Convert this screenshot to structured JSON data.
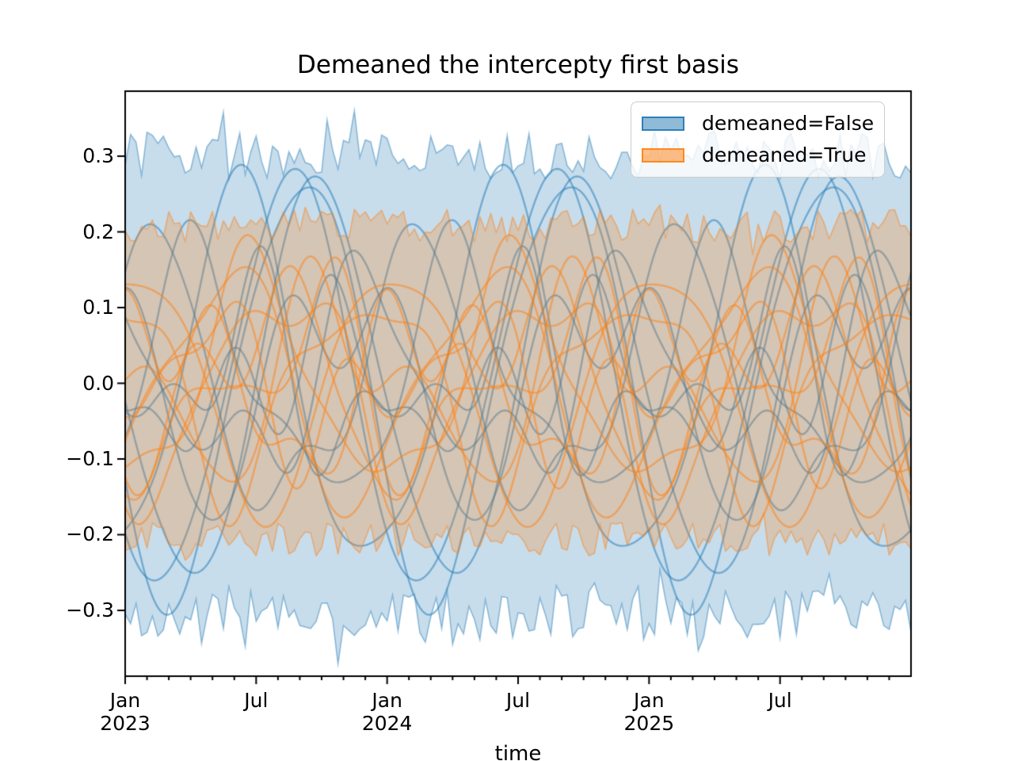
{
  "chart_data": {
    "type": "line",
    "title": "Demeaned the intercepty first basis",
    "xlabel": "time",
    "ylabel": "",
    "x_unit": "months since Jan 2023",
    "xlim": [
      0,
      36
    ],
    "ylim": [
      -0.387,
      0.386
    ],
    "grid": false,
    "yticks": [
      {
        "value": 0.3,
        "label": "0.3"
      },
      {
        "value": 0.2,
        "label": "0.2"
      },
      {
        "value": 0.1,
        "label": "0.1"
      },
      {
        "value": 0.0,
        "label": "0.0"
      },
      {
        "value": -0.1,
        "label": "−0.1"
      },
      {
        "value": -0.2,
        "label": "−0.2"
      },
      {
        "value": -0.3,
        "label": "−0.3"
      }
    ],
    "xticks_major": [
      {
        "month": 0,
        "lines": [
          "Jan",
          "2023"
        ]
      },
      {
        "month": 6,
        "lines": [
          "Jul"
        ]
      },
      {
        "month": 12,
        "lines": [
          "Jan",
          "2024"
        ]
      },
      {
        "month": 18,
        "lines": [
          "Jul"
        ]
      },
      {
        "month": 24,
        "lines": [
          "Jan",
          "2025"
        ]
      },
      {
        "month": 30,
        "lines": [
          "Jul"
        ]
      }
    ],
    "xticks_minor_interval_months": 1,
    "legend": {
      "position": "upper right",
      "entries": [
        {
          "label": "demeaned=False",
          "color": "#1f77b4"
        },
        {
          "label": "demeaned=True",
          "color": "#ff7f0e"
        }
      ]
    },
    "style": {
      "fill_alpha": 0.25,
      "band_edge_alpha": 0.45,
      "band_edge_width": 1.6,
      "line_alpha": 0.5,
      "line_width": 2.4,
      "spine_color": "#000000",
      "legend_swatch_fill_alpha": 0.5,
      "legend_swatch_edge_alpha": 0.85
    },
    "groups": [
      {
        "name": "demeaned=False",
        "color": "#1f77b4",
        "period_months": 12,
        "band": {
          "top_mean": 0.302,
          "bottom_mean": -0.305,
          "noise_amp": 0.032,
          "spike_prob": 0.1,
          "spike_amp": 0.05,
          "step_months": 0.25,
          "seed": 90210
        },
        "lines_harmonics_a1_s1_a2_s2_a3_s3": [
          [
            0.27,
            4.6,
            0.02,
            1.0,
            0.0,
            0.0
          ],
          [
            0.28,
            5.1,
            0.03,
            3.0,
            0.0,
            0.0
          ],
          [
            0.26,
            5.9,
            0.02,
            0.5,
            0.0,
            0.0
          ],
          [
            0.25,
            2.2,
            0.04,
            4.0,
            0.0,
            0.0
          ],
          [
            0.15,
            0.3,
            0.05,
            1.2,
            0.02,
            2.0
          ],
          [
            0.11,
            8.1,
            0.06,
            3.3,
            0.03,
            0.8
          ],
          [
            0.07,
            2.4,
            0.07,
            4.6,
            0.05,
            1.4
          ],
          [
            0.17,
            10.2,
            0.05,
            0.2,
            0.02,
            3.1
          ],
          [
            0.06,
            6.0,
            0.05,
            2.6,
            0.05,
            4.2
          ],
          [
            0.12,
            7.0,
            0.08,
            5.4,
            0.02,
            2.8
          ]
        ]
      },
      {
        "name": "demeaned=True",
        "color": "#ff7f0e",
        "period_months": 12,
        "band": {
          "top_mean": 0.208,
          "bottom_mean": -0.206,
          "noise_amp": 0.022,
          "spike_prob": 0.1,
          "spike_amp": 0.035,
          "step_months": 0.25,
          "seed": 4711
        },
        "lines_harmonics_a1_s1_a2_s2_a3_s3": [
          [
            0.16,
            9.4,
            0.03,
            2.0,
            0.0,
            0.0
          ],
          [
            0.15,
            1.6,
            0.04,
            5.0,
            0.0,
            0.0
          ],
          [
            0.13,
            4.1,
            0.05,
            2.3,
            0.02,
            1.0
          ],
          [
            0.1,
            6.6,
            0.07,
            0.6,
            0.02,
            3.5
          ],
          [
            0.09,
            11.0,
            0.04,
            3.8,
            0.05,
            2.9
          ],
          [
            0.14,
            2.9,
            0.04,
            4.2,
            0.02,
            0.3
          ],
          [
            0.08,
            5.3,
            0.08,
            2.1,
            0.03,
            5.0
          ],
          [
            0.12,
            8.0,
            0.05,
            6.2,
            0.02,
            1.7
          ],
          [
            0.06,
            0.4,
            0.06,
            3.1,
            0.04,
            4.8
          ],
          [
            0.11,
            3.6,
            0.06,
            1.0,
            0.03,
            2.2
          ]
        ]
      }
    ]
  }
}
